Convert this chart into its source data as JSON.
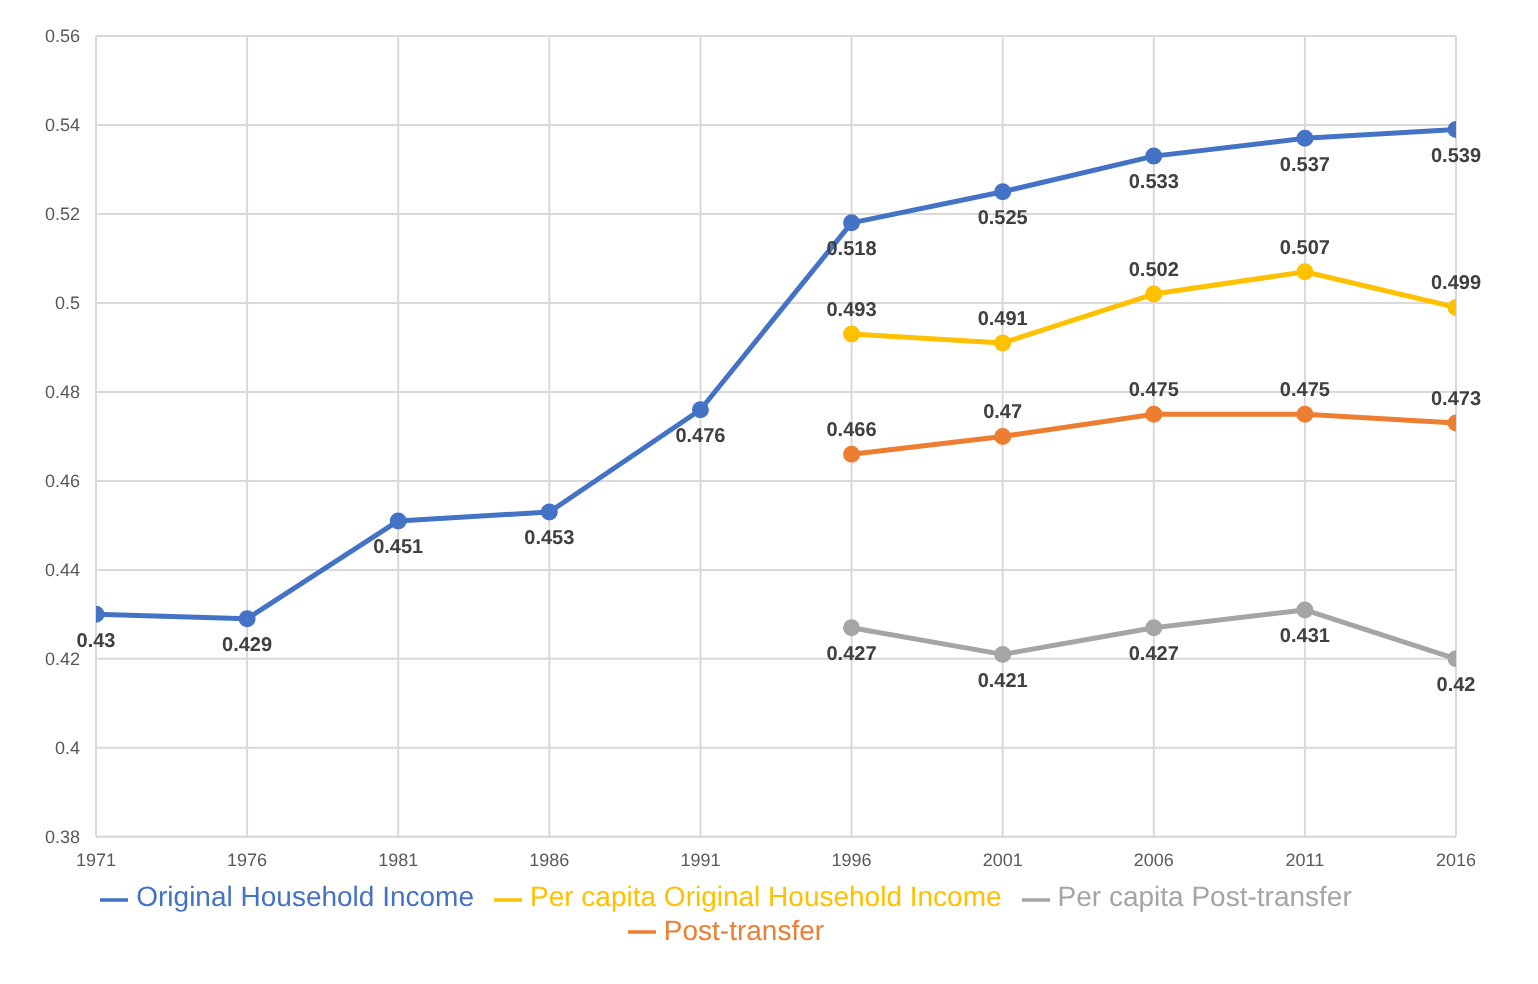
{
  "chart_data": {
    "type": "line",
    "categories": [
      "1971",
      "1976",
      "1981",
      "1986",
      "1991",
      "1996",
      "2001",
      "2006",
      "2011",
      "2016"
    ],
    "series": [
      {
        "name": "Original Household Income",
        "color": "#4472c4",
        "values": [
          0.43,
          0.429,
          0.451,
          0.453,
          0.476,
          0.518,
          0.525,
          0.533,
          0.537,
          0.539
        ]
      },
      {
        "name": "Post-transfer",
        "color": "#ed7d31",
        "values": [
          null,
          null,
          null,
          null,
          null,
          0.466,
          0.47,
          0.475,
          0.475,
          0.473
        ]
      },
      {
        "name": "Per capita Original Household Income",
        "color": "#ffc000",
        "values": [
          null,
          null,
          null,
          null,
          null,
          0.493,
          0.491,
          0.502,
          0.507,
          0.499
        ]
      },
      {
        "name": "Per capita Post-transfer",
        "color": "#a5a5a5",
        "values": [
          null,
          null,
          null,
          null,
          null,
          0.427,
          0.421,
          0.427,
          0.431,
          0.42
        ]
      }
    ],
    "ylim": [
      0.38,
      0.56
    ],
    "yticks": [
      0.38,
      0.4,
      0.42,
      0.44,
      0.46,
      0.48,
      0.5,
      0.52,
      0.54,
      0.56
    ],
    "grid": true,
    "legend": "bottom",
    "marker": "circle",
    "line_style": "solid",
    "data_labels": true
  }
}
